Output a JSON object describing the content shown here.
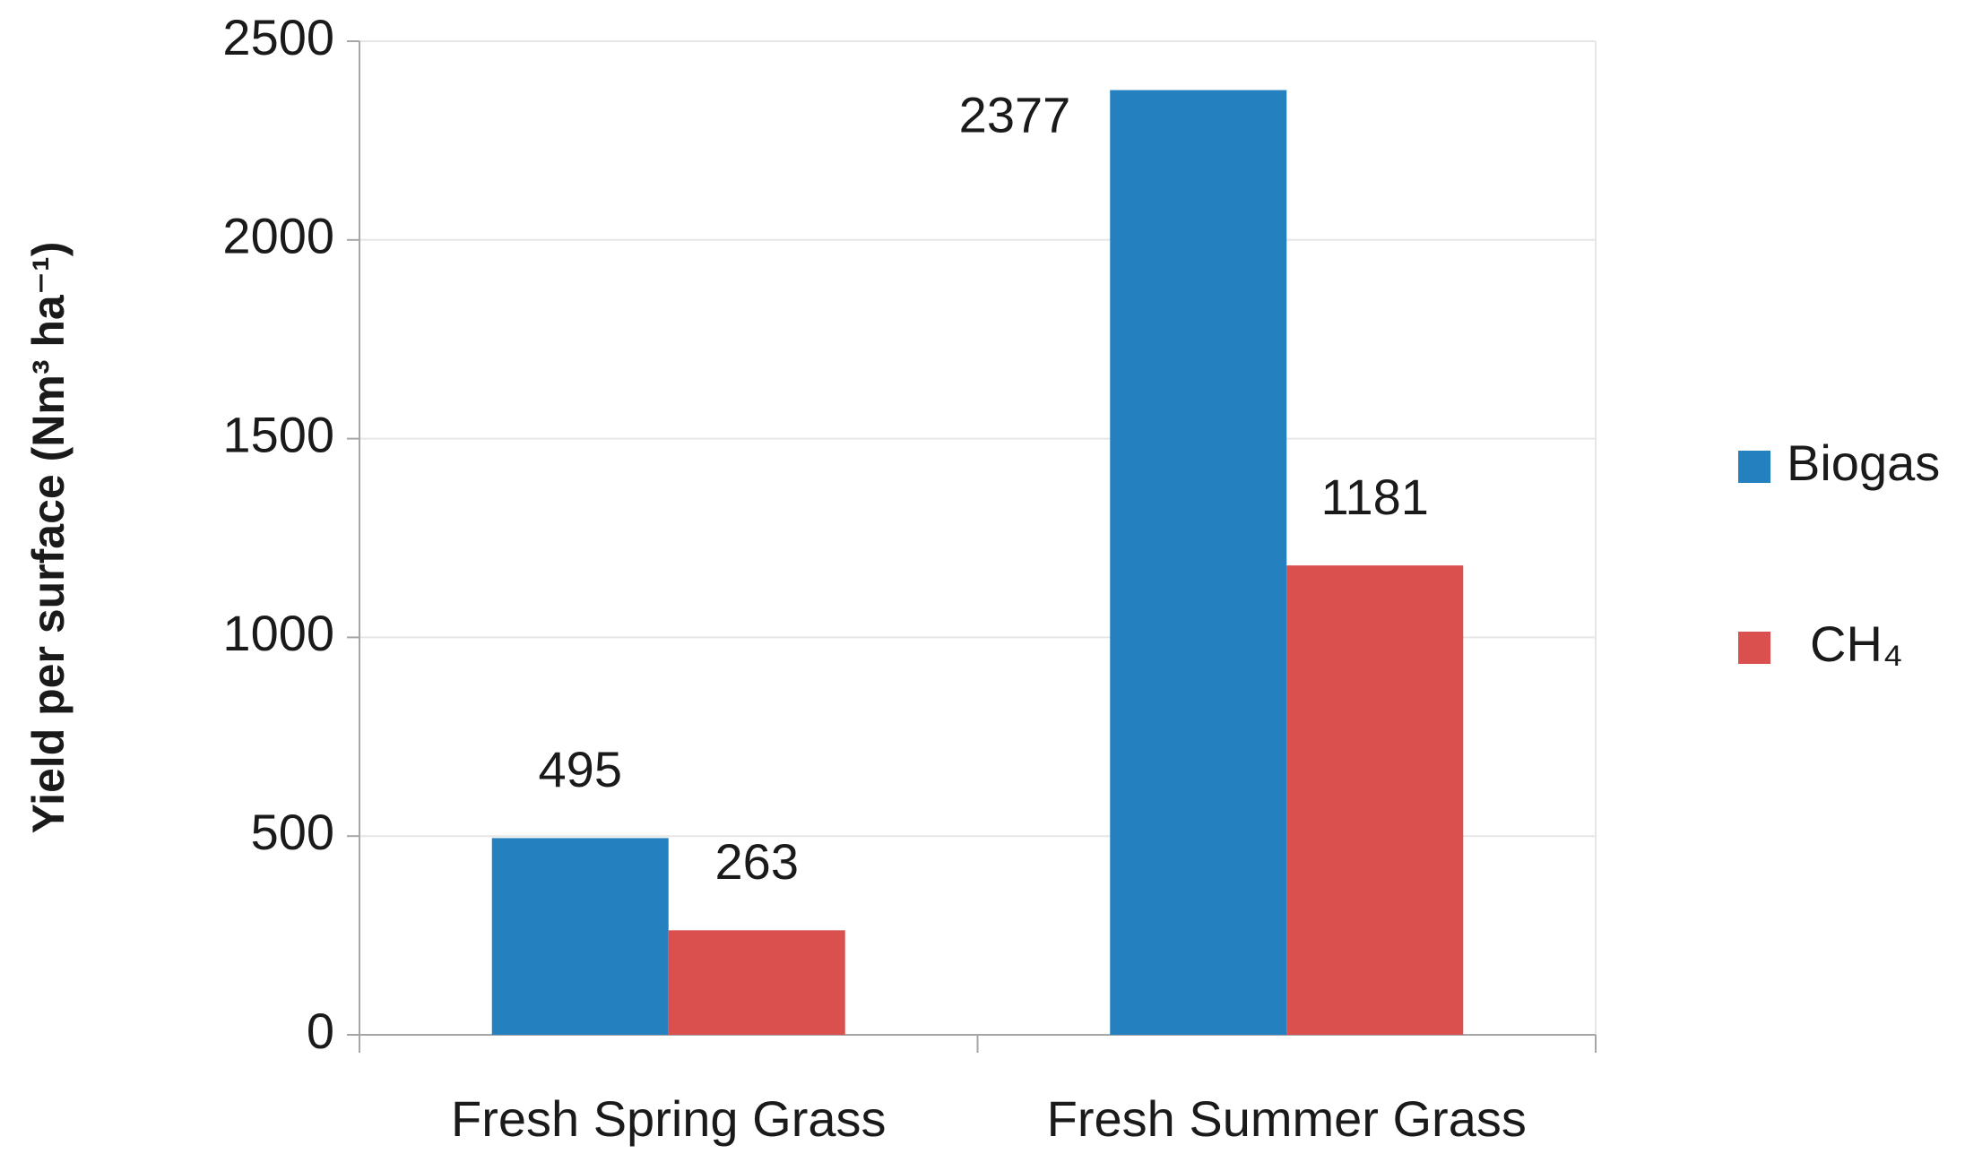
{
  "chart_data": {
    "type": "bar",
    "y_label": "Yield per surface (Nm³ ha⁻¹)",
    "categories": [
      "Fresh Spring Grass",
      "Fresh Summer Grass"
    ],
    "series": [
      {
        "name": "Biogas",
        "color": "#2580c0",
        "values": [
          495,
          2377
        ]
      },
      {
        "name": "CH₄",
        "color": "#d9504e",
        "values": [
          263,
          1181
        ]
      }
    ],
    "ylim": [
      0,
      2500
    ],
    "yticks": [
      0,
      500,
      1000,
      1500,
      2000,
      2500
    ],
    "grid": true,
    "legend": "right"
  }
}
